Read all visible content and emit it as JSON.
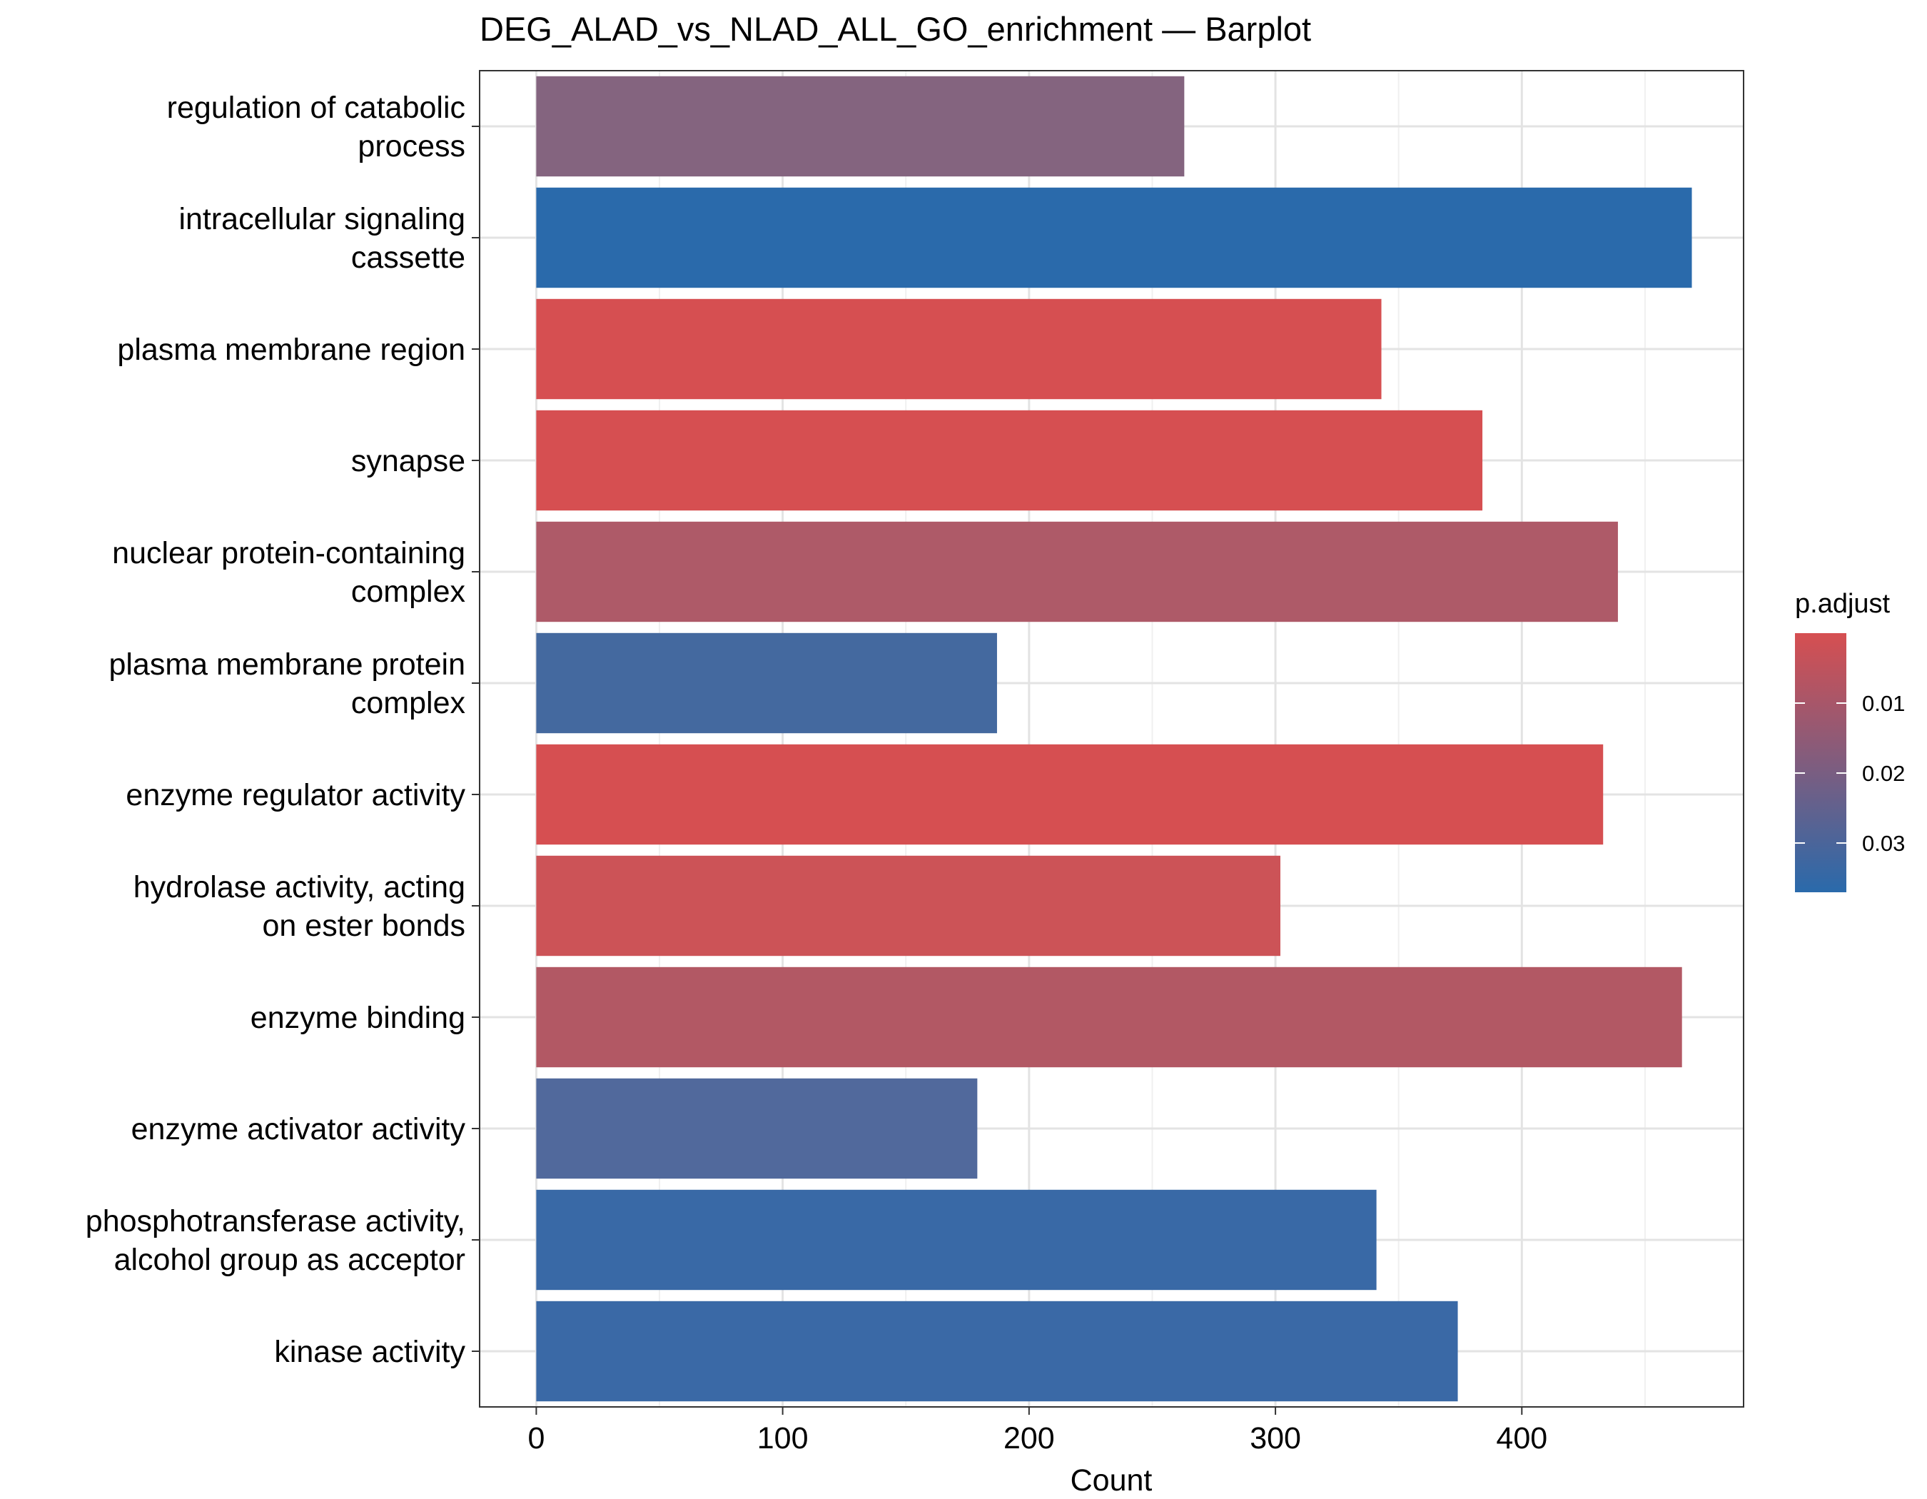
{
  "chart_data": {
    "type": "bar",
    "orientation": "horizontal",
    "title": "DEG_ALAD_vs_NLAD_ALL_GO_enrichment — Barplot",
    "xlabel": "Count",
    "ylabel": "",
    "xlim": [
      -23,
      490
    ],
    "x_ticks": [
      0,
      100,
      200,
      300,
      400
    ],
    "x_tick_labels": [
      "0",
      "100",
      "200",
      "300",
      "400"
    ],
    "grid": true,
    "categories": [
      [
        "regulation of catabolic",
        "process"
      ],
      [
        "intracellular signaling",
        "cassette"
      ],
      [
        "plasma membrane region"
      ],
      [
        "synapse"
      ],
      [
        "nuclear protein-containing",
        "complex"
      ],
      [
        "plasma membrane protein",
        "complex"
      ],
      [
        "enzyme regulator activity"
      ],
      [
        "hydrolase activity, acting",
        "on ester bonds"
      ],
      [
        "enzyme binding"
      ],
      [
        "enzyme activator activity"
      ],
      [
        "phosphotransferase activity,",
        "alcohol group as acceptor"
      ],
      [
        "kinase activity"
      ]
    ],
    "values": [
      263,
      469,
      343,
      384,
      439,
      187,
      433,
      302,
      465,
      179,
      341,
      374
    ],
    "colors": [
      "#84647f",
      "#2a6aab",
      "#d64f51",
      "#d64f51",
      "#ae5a68",
      "#44699f",
      "#d64f51",
      "#cc5357",
      "#b25864",
      "#51699c",
      "#3969a6",
      "#3a69a6"
    ],
    "legend": {
      "title": "p.adjust",
      "position": "right",
      "gradient_top": "#d64f51",
      "gradient_bottom": "#2a6aab",
      "tick_labels": [
        "0.01",
        "0.02",
        "0.03"
      ],
      "tick_positions": [
        0.27,
        0.54,
        0.81
      ]
    }
  }
}
